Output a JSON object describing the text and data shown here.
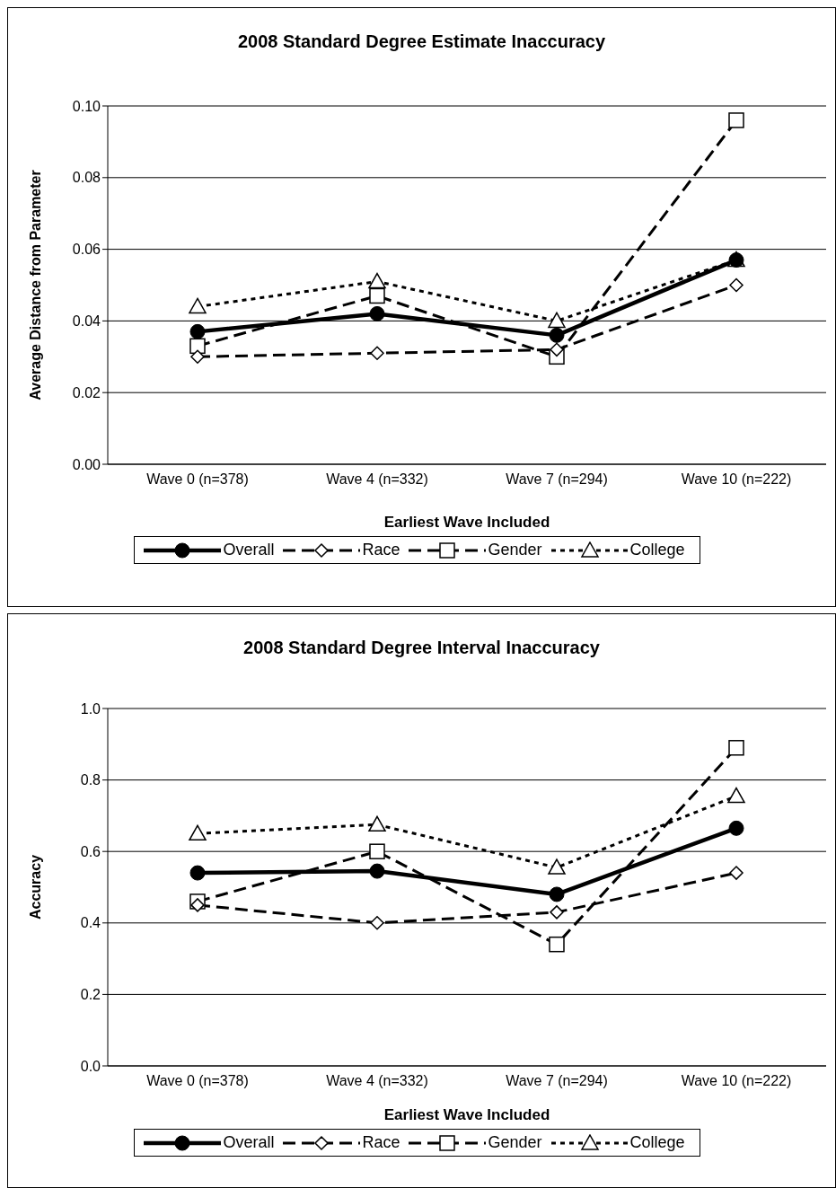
{
  "chart_data": [
    {
      "type": "line",
      "title": "2008 Standard Degree Estimate Inaccuracy",
      "xlabel": "Earliest Wave Included",
      "ylabel": "Average Distance from Parameter",
      "categories": [
        "Wave 0 (n=378)",
        "Wave 4 (n=332)",
        "Wave 7 (n=294)",
        "Wave 10 (n=222)"
      ],
      "series": [
        {
          "name": "Overall",
          "color": "#000000",
          "marker": "circle",
          "line_style": "solid",
          "values": [
            0.037,
            0.042,
            0.036,
            0.057
          ]
        },
        {
          "name": "Race",
          "color": "#000000",
          "marker": "diamond",
          "line_style": "dashed",
          "values": [
            0.03,
            0.031,
            0.032,
            0.05
          ]
        },
        {
          "name": "Gender",
          "color": "#000000",
          "marker": "square",
          "line_style": "dashed",
          "values": [
            0.033,
            0.047,
            0.03,
            0.096
          ]
        },
        {
          "name": "College",
          "color": "#000000",
          "marker": "triangle",
          "line_style": "dotted",
          "values": [
            0.044,
            0.051,
            0.04,
            0.057
          ]
        }
      ],
      "ylim": [
        0,
        0.1
      ],
      "yticks": [
        {
          "value": 0,
          "label": "0.00"
        },
        {
          "value": 0.02,
          "label": "0.02"
        },
        {
          "value": 0.04,
          "label": "0.04"
        },
        {
          "value": 0.06,
          "label": "0.06"
        },
        {
          "value": 0.08,
          "label": "0.08"
        },
        {
          "value": 0.1,
          "label": "0.10"
        }
      ],
      "grid": "y",
      "legend": "bottom"
    },
    {
      "type": "line",
      "title": "2008 Standard Degree Interval Inaccuracy",
      "xlabel": "Earliest Wave Included",
      "ylabel": "Accuracy",
      "categories": [
        "Wave 0 (n=378)",
        "Wave 4 (n=332)",
        "Wave 7 (n=294)",
        "Wave 10 (n=222)"
      ],
      "series": [
        {
          "name": "Overall",
          "color": "#000000",
          "marker": "circle",
          "line_style": "solid",
          "values": [
            0.54,
            0.545,
            0.48,
            0.665
          ]
        },
        {
          "name": "Race",
          "color": "#000000",
          "marker": "diamond",
          "line_style": "dashed",
          "values": [
            0.45,
            0.4,
            0.43,
            0.54
          ]
        },
        {
          "name": "Gender",
          "color": "#000000",
          "marker": "square",
          "line_style": "dashed",
          "values": [
            0.46,
            0.6,
            0.34,
            0.89
          ]
        },
        {
          "name": "College",
          "color": "#000000",
          "marker": "triangle",
          "line_style": "dotted",
          "values": [
            0.65,
            0.675,
            0.555,
            0.755
          ]
        }
      ],
      "ylim": [
        0,
        1
      ],
      "yticks": [
        {
          "value": 0,
          "label": "0.0"
        },
        {
          "value": 0.2,
          "label": "0.2"
        },
        {
          "value": 0.4,
          "label": "0.4"
        },
        {
          "value": 0.6,
          "label": "0.6"
        },
        {
          "value": 0.8,
          "label": "0.8"
        },
        {
          "value": 1,
          "label": "1.0"
        }
      ],
      "grid": "y",
      "legend": "bottom"
    }
  ]
}
